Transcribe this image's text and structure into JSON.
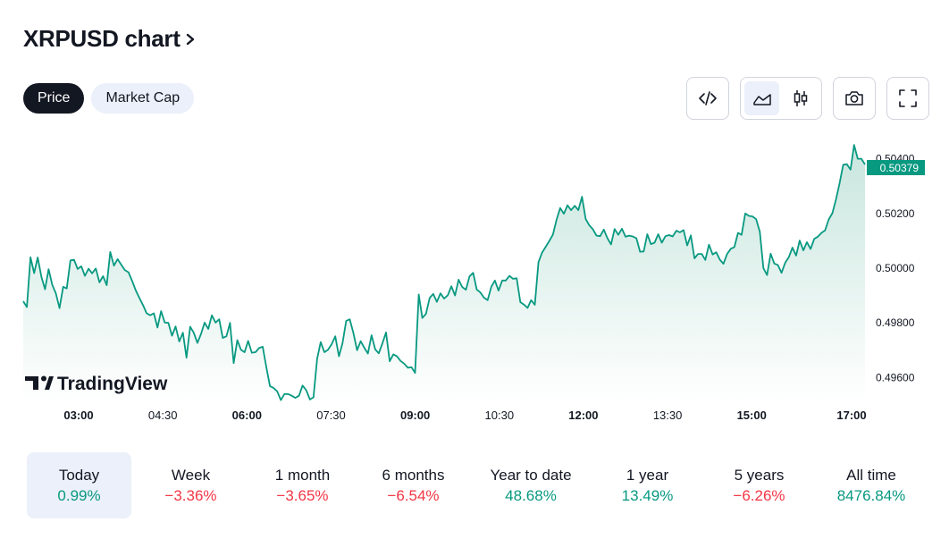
{
  "header": {
    "title": "XRPUSD chart"
  },
  "tabs": [
    {
      "label": "Price",
      "active": true
    },
    {
      "label": "Market Cap",
      "active": false
    }
  ],
  "toolbar": {
    "icons": [
      "embed-code-icon",
      "area-chart-icon",
      "candlestick-icon",
      "camera-icon",
      "fullscreen-icon"
    ],
    "active_chart_style": "area"
  },
  "colors": {
    "line": "#089981",
    "area_top": "#c8e6de",
    "area_bottom": "#ffffff",
    "up": "#089981",
    "down": "#f23645",
    "active_tab_bg": "#131722",
    "inactive_tab_bg": "#ebf0fa"
  },
  "watermark": "TradingView",
  "chart_data": {
    "type": "area",
    "title": "",
    "xlabel": "",
    "ylabel": "",
    "x_tick_labels": [
      "03:00",
      "04:30",
      "06:00",
      "07:30",
      "09:00",
      "10:30",
      "12:00",
      "13:30",
      "15:00",
      "17:00"
    ],
    "x_tick_bold": [
      true,
      false,
      true,
      false,
      true,
      false,
      true,
      false,
      true,
      true
    ],
    "y_tick_labels": [
      "0.50400",
      "0.50200",
      "0.50000",
      "0.49800",
      "0.49600"
    ],
    "ylim": [
      0.4951,
      0.5049
    ],
    "last_price_label": "0.50379",
    "series": [
      {
        "values": [
          0.49879,
          0.49858,
          0.5004,
          0.49982,
          0.50039,
          0.49969,
          0.49923,
          0.49996,
          0.49939,
          0.49908,
          0.49854,
          0.49932,
          0.49926,
          0.50028,
          0.50031,
          0.49997,
          0.50007,
          0.49972,
          0.49998,
          0.49981,
          0.49999,
          0.49948,
          0.49971,
          0.49938,
          0.50059,
          0.50009,
          0.50033,
          0.50013,
          0.49993,
          0.49985,
          0.49954,
          0.49919,
          0.49892,
          0.49865,
          0.49835,
          0.49828,
          0.49835,
          0.49783,
          0.49843,
          0.49801,
          0.498,
          0.49753,
          0.49787,
          0.49732,
          0.49764,
          0.49673,
          0.49786,
          0.49764,
          0.49727,
          0.4976,
          0.49801,
          0.49778,
          0.49828,
          0.49801,
          0.49813,
          0.49745,
          0.49751,
          0.498,
          0.49653,
          0.49737,
          0.49702,
          0.49693,
          0.49734,
          0.49691,
          0.49693,
          0.49708,
          0.49713,
          0.49639,
          0.49569,
          0.49562,
          0.4955,
          0.49518,
          0.4954,
          0.4954,
          0.49534,
          0.49526,
          0.49534,
          0.49571,
          0.49554,
          0.4952,
          0.49528,
          0.49669,
          0.4973,
          0.49693,
          0.49702,
          0.49722,
          0.49751,
          0.49678,
          0.49726,
          0.49807,
          0.49813,
          0.49763,
          0.497,
          0.49733,
          0.49709,
          0.49688,
          0.49755,
          0.49703,
          0.49689,
          0.49726,
          0.49765,
          0.4966,
          0.49685,
          0.49678,
          0.49661,
          0.49651,
          0.49636,
          0.49638,
          0.49617,
          0.49904,
          0.49818,
          0.49833,
          0.49891,
          0.49906,
          0.49877,
          0.49908,
          0.49889,
          0.49901,
          0.49934,
          0.499,
          0.49958,
          0.49931,
          0.49921,
          0.4997,
          0.49983,
          0.49922,
          0.49911,
          0.49892,
          0.49883,
          0.49932,
          0.49955,
          0.49918,
          0.49955,
          0.49955,
          0.49972,
          0.49961,
          0.49963,
          0.49876,
          0.49867,
          0.49855,
          0.49883,
          0.49866,
          0.50022,
          0.50057,
          0.50078,
          0.501,
          0.50123,
          0.50178,
          0.5022,
          0.50199,
          0.5023,
          0.50212,
          0.50228,
          0.50212,
          0.50261,
          0.5018,
          0.50157,
          0.50142,
          0.50119,
          0.50117,
          0.50141,
          0.5011,
          0.50087,
          0.50143,
          0.50122,
          0.50144,
          0.50115,
          0.50119,
          0.50116,
          0.50109,
          0.5006,
          0.50061,
          0.50124,
          0.50088,
          0.50093,
          0.50124,
          0.50093,
          0.50117,
          0.50121,
          0.50116,
          0.50137,
          0.50131,
          0.50139,
          0.50083,
          0.5012,
          0.50036,
          0.50052,
          0.50052,
          0.5003,
          0.50086,
          0.5005,
          0.50058,
          0.50031,
          0.50016,
          0.50052,
          0.50071,
          0.50077,
          0.50129,
          0.50122,
          0.502,
          0.50191,
          0.50189,
          0.50179,
          0.50133,
          0.5,
          0.49975,
          0.50053,
          0.50017,
          0.50011,
          0.49983,
          0.5002,
          0.5004,
          0.50075,
          0.50046,
          0.50101,
          0.50065,
          0.50095,
          0.5007,
          0.50107,
          0.50115,
          0.50129,
          0.50138,
          0.50178,
          0.50201,
          0.50251,
          0.50311,
          0.50378,
          0.5038,
          0.5036,
          0.5045,
          0.504,
          0.504,
          0.50379
        ]
      }
    ]
  },
  "periods": [
    {
      "label": "Today",
      "value": "0.99%",
      "direction": "up",
      "active": true
    },
    {
      "label": "Week",
      "value": "−3.36%",
      "direction": "down",
      "active": false
    },
    {
      "label": "1 month",
      "value": "−3.65%",
      "direction": "down",
      "active": false
    },
    {
      "label": "6 months",
      "value": "−6.54%",
      "direction": "down",
      "active": false
    },
    {
      "label": "Year to date",
      "value": "48.68%",
      "direction": "up",
      "active": false
    },
    {
      "label": "1 year",
      "value": "13.49%",
      "direction": "up",
      "active": false
    },
    {
      "label": "5 years",
      "value": "−6.26%",
      "direction": "down",
      "active": false
    },
    {
      "label": "All time",
      "value": "8476.84%",
      "direction": "up",
      "active": false
    }
  ]
}
